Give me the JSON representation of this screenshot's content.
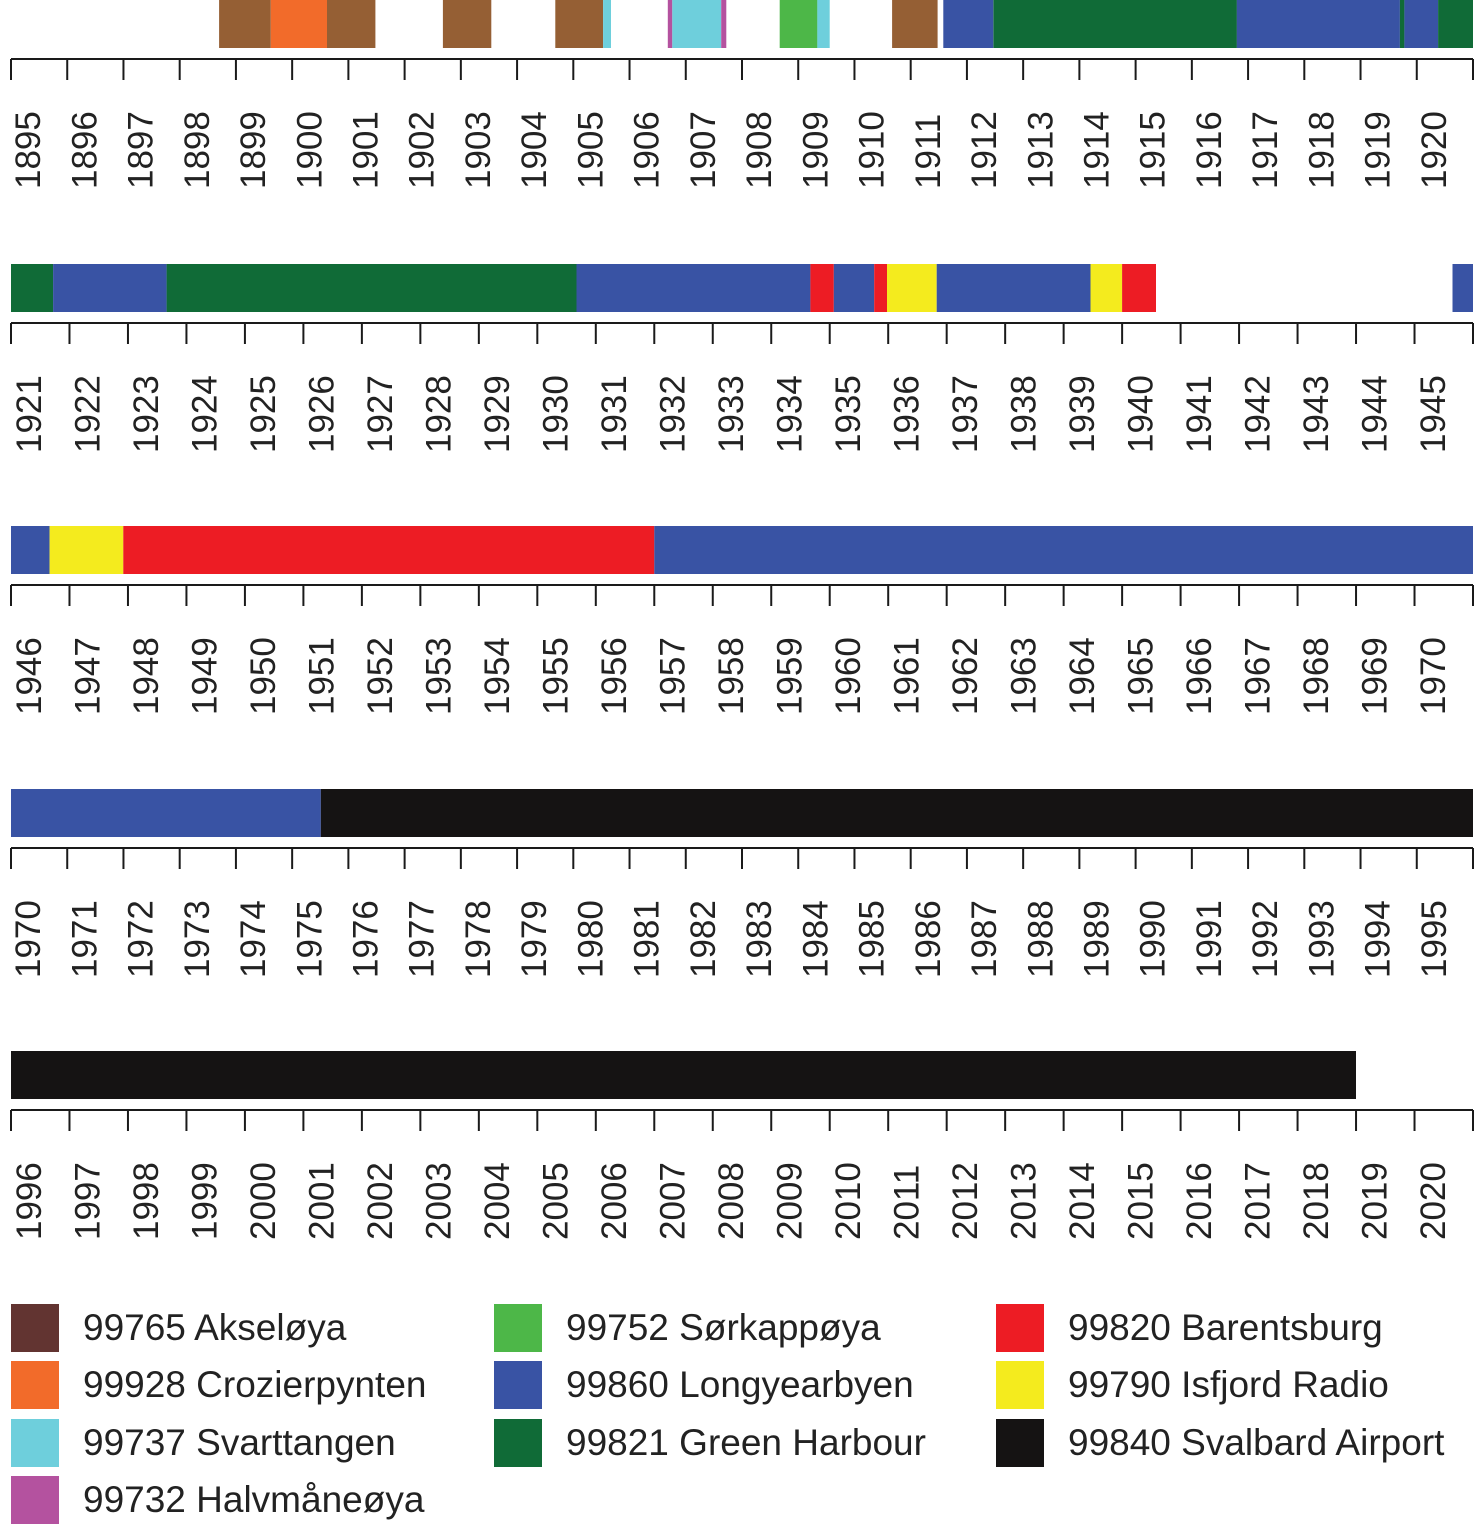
{
  "chart_data": {
    "type": "timeline",
    "title": "",
    "xlabel": "",
    "ylabel": "",
    "grid": false,
    "legend_position": "bottom",
    "stations": [
      {
        "id": "akseloya",
        "label": "99765 Akseløya",
        "color": "#955f34"
      },
      {
        "id": "crozierpynten",
        "label": "99928 Crozierpynten",
        "color": "#f26b2a"
      },
      {
        "id": "svarttangen",
        "label": "99737 Svarttangen",
        "color": "#6ecfdc"
      },
      {
        "id": "halvmaneoya",
        "label": "99732 Halvmåneøya",
        "color": "#b4529f"
      },
      {
        "id": "sorkappoya",
        "label": "99752 Sørkappøya",
        "color": "#4db748"
      },
      {
        "id": "longyearbyen",
        "label": "99860 Longyearbyen",
        "color": "#3953a4"
      },
      {
        "id": "greenharbour",
        "label": "99821 Green Harbour",
        "color": "#106b37"
      },
      {
        "id": "barentsburg",
        "label": "99820 Barentsburg",
        "color": "#ed1c24"
      },
      {
        "id": "isfjord",
        "label": "99790 Isfjord Radio",
        "color": "#f4eb1e"
      },
      {
        "id": "airport",
        "label": "99840 Svalbard Airport",
        "color": "#151313"
      }
    ],
    "legend_swatch_colors": {
      "akseloya": "#623431"
    },
    "rows": [
      {
        "years": [
          "1895",
          "1896",
          "1897",
          "1898",
          "1899",
          "1900",
          "1901",
          "1902",
          "1903",
          "1904",
          "1905",
          "1906",
          "1907",
          "1908",
          "1909",
          "1910",
          "1911",
          "1912",
          "1913",
          "1914",
          "1915",
          "1916",
          "1917",
          "1918",
          "1919",
          "1920"
        ],
        "segments": [
          {
            "station": "akseloya",
            "start": 1898.7,
            "end": 1899.62
          },
          {
            "station": "crozierpynten",
            "start": 1899.62,
            "end": 1900.62
          },
          {
            "station": "akseloya",
            "start": 1900.62,
            "end": 1901.48
          },
          {
            "station": "akseloya",
            "start": 1902.68,
            "end": 1903.54
          },
          {
            "station": "akseloya",
            "start": 1904.68,
            "end": 1905.53
          },
          {
            "station": "svarttangen",
            "start": 1905.53,
            "end": 1905.67
          },
          {
            "station": "halvmaneoya",
            "start": 1906.68,
            "end": 1906.76
          },
          {
            "station": "svarttangen",
            "start": 1906.76,
            "end": 1907.63
          },
          {
            "station": "halvmaneoya",
            "start": 1907.63,
            "end": 1907.72
          },
          {
            "station": "sorkappoya",
            "start": 1908.67,
            "end": 1909.34
          },
          {
            "station": "svarttangen",
            "start": 1909.34,
            "end": 1909.56
          },
          {
            "station": "akseloya",
            "start": 1910.67,
            "end": 1911.48
          },
          {
            "station": "longyearbyen",
            "start": 1911.58,
            "end": 1912.47
          },
          {
            "station": "greenharbour",
            "start": 1912.47,
            "end": 1916.8
          },
          {
            "station": "longyearbyen",
            "start": 1916.8,
            "end": 1919.7
          },
          {
            "station": "greenharbour",
            "start": 1919.7,
            "end": 1919.78
          },
          {
            "station": "longyearbyen",
            "start": 1919.78,
            "end": 1920.38
          },
          {
            "station": "greenharbour",
            "start": 1920.38,
            "end": 1921.0
          }
        ]
      },
      {
        "years": [
          "1921",
          "1922",
          "1923",
          "1924",
          "1925",
          "1926",
          "1927",
          "1928",
          "1929",
          "1930",
          "1931",
          "1932",
          "1933",
          "1934",
          "1935",
          "1936",
          "1937",
          "1938",
          "1939",
          "1940",
          "1941",
          "1942",
          "1943",
          "1944",
          "1945"
        ],
        "segments": [
          {
            "station": "greenharbour",
            "start": 1921.0,
            "end": 1921.72
          },
          {
            "station": "longyearbyen",
            "start": 1921.72,
            "end": 1923.66
          },
          {
            "station": "greenharbour",
            "start": 1923.66,
            "end": 1930.67
          },
          {
            "station": "longyearbyen",
            "start": 1930.67,
            "end": 1934.67
          },
          {
            "station": "barentsburg",
            "start": 1934.67,
            "end": 1935.07
          },
          {
            "station": "longyearbyen",
            "start": 1935.07,
            "end": 1935.76
          },
          {
            "station": "barentsburg",
            "start": 1935.76,
            "end": 1935.98
          },
          {
            "station": "isfjord",
            "start": 1935.98,
            "end": 1936.83
          },
          {
            "station": "longyearbyen",
            "start": 1936.83,
            "end": 1939.46
          },
          {
            "station": "isfjord",
            "start": 1939.46,
            "end": 1940.0
          },
          {
            "station": "barentsburg",
            "start": 1940.0,
            "end": 1940.58
          },
          {
            "station": "longyearbyen",
            "start": 1945.65,
            "end": 1946.0
          }
        ]
      },
      {
        "years": [
          "1946",
          "1947",
          "1948",
          "1949",
          "1950",
          "1951",
          "1952",
          "1953",
          "1954",
          "1955",
          "1956",
          "1957",
          "1958",
          "1959",
          "1960",
          "1961",
          "1962",
          "1963",
          "1964",
          "1965",
          "1966",
          "1967",
          "1968",
          "1969",
          "1970"
        ],
        "segments": [
          {
            "station": "longyearbyen",
            "start": 1946.0,
            "end": 1946.66
          },
          {
            "station": "isfjord",
            "start": 1946.66,
            "end": 1947.92
          },
          {
            "station": "barentsburg",
            "start": 1947.92,
            "end": 1957.0
          },
          {
            "station": "longyearbyen",
            "start": 1957.0,
            "end": 1971.0
          }
        ]
      },
      {
        "years": [
          "1970",
          "1971",
          "1972",
          "1973",
          "1974",
          "1975",
          "1976",
          "1977",
          "1978",
          "1979",
          "1980",
          "1981",
          "1982",
          "1983",
          "1984",
          "1985",
          "1986",
          "1987",
          "1988",
          "1989",
          "1990",
          "1991",
          "1992",
          "1993",
          "1994",
          "1995"
        ],
        "segments": [
          {
            "station": "longyearbyen",
            "start": 1970.0,
            "end": 1975.51
          },
          {
            "station": "airport",
            "start": 1975.51,
            "end": 1996.0
          }
        ]
      },
      {
        "years": [
          "1996",
          "1997",
          "1998",
          "1999",
          "2000",
          "2001",
          "2002",
          "2003",
          "2004",
          "2005",
          "2006",
          "2007",
          "2008",
          "2009",
          "2010",
          "2011",
          "2012",
          "2013",
          "2014",
          "2015",
          "2016",
          "2017",
          "2018",
          "2019",
          "2020"
        ],
        "segments": [
          {
            "station": "airport",
            "start": 1996.0,
            "end": 2019.0
          }
        ]
      }
    ]
  }
}
